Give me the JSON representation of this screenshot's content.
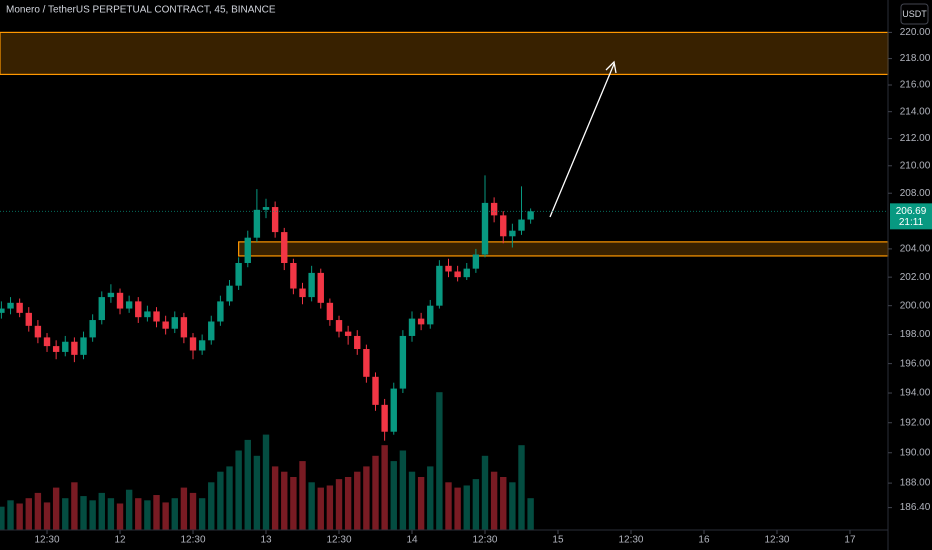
{
  "chart_data": {
    "type": "candlestick",
    "title": "Monero / TetherUS PERPETUAL CONTRACT, 45, BINANCE",
    "currency": "USDT",
    "countdown": "21:11",
    "log_scale": true,
    "up_color": "#089981",
    "down_color": "#f23645",
    "zone_color": "#ff9800",
    "t": [
      -19.5,
      -18,
      -16.5,
      -15,
      -13.5,
      -12,
      -10.5,
      -9,
      -7.5,
      -6,
      -4.5,
      -3,
      -1.5,
      0,
      1.5,
      3,
      4.5,
      6,
      7.5,
      9,
      10.5,
      12,
      13.5,
      15,
      16.5,
      18,
      19.5,
      21,
      22.5,
      24,
      25.5,
      27,
      28.5,
      30,
      31.5,
      33,
      34.5,
      36,
      37.5,
      39,
      40.5,
      42,
      43.5,
      45,
      46.5,
      48,
      49.5,
      51,
      52.5,
      54,
      55.5,
      57,
      58.5,
      60,
      61.5,
      63,
      64.5,
      66,
      67.5
    ],
    "open": [
      199.5,
      199.8,
      200.2,
      199.5,
      198.6,
      197.8,
      197.2,
      196.8,
      197.5,
      196.6,
      197.8,
      199.0,
      200.6,
      200.9,
      199.8,
      200.3,
      199.2,
      199.6,
      198.9,
      198.4,
      199.2,
      197.8,
      196.9,
      197.6,
      198.9,
      200.3,
      201.4,
      203.0,
      204.8,
      206.8,
      207.0,
      205.2,
      203.0,
      201.2,
      200.6,
      202.3,
      200.2,
      199.0,
      198.2,
      197.9,
      197.0,
      195.1,
      193.2,
      191.4,
      194.3,
      197.9,
      199.1,
      198.7,
      200.0,
      202.8,
      202.4,
      202.0,
      202.6,
      203.6,
      207.3,
      206.4,
      204.9,
      205.3,
      206.1
    ],
    "high": [
      200.3,
      200.6,
      200.5,
      199.9,
      199.0,
      198.1,
      197.6,
      197.9,
      197.8,
      198.2,
      199.4,
      201.0,
      201.5,
      201.2,
      200.7,
      200.6,
      200.0,
      199.9,
      199.3,
      199.6,
      199.5,
      198.1,
      198.0,
      199.3,
      200.7,
      201.8,
      203.4,
      205.3,
      208.3,
      207.6,
      207.4,
      205.5,
      203.3,
      201.6,
      202.8,
      202.6,
      200.5,
      199.3,
      198.6,
      198.3,
      197.3,
      195.4,
      193.6,
      194.7,
      198.3,
      199.6,
      199.5,
      200.4,
      203.2,
      203.3,
      202.8,
      203.0,
      204.0,
      209.3,
      207.7,
      206.7,
      205.8,
      208.5,
      206.9
    ],
    "low": [
      199.1,
      199.4,
      199.2,
      198.2,
      197.4,
      196.8,
      196.3,
      196.5,
      196.1,
      196.3,
      197.5,
      198.7,
      200.2,
      199.4,
      199.5,
      198.8,
      198.9,
      198.5,
      198.0,
      198.1,
      197.4,
      196.3,
      196.6,
      197.3,
      198.6,
      200.0,
      201.1,
      202.7,
      204.5,
      206.2,
      204.8,
      202.5,
      200.8,
      200.1,
      200.3,
      199.8,
      198.6,
      197.8,
      197.3,
      196.6,
      194.7,
      192.8,
      190.8,
      191.2,
      194.0,
      197.5,
      198.3,
      198.4,
      199.8,
      202.0,
      201.7,
      201.8,
      202.3,
      203.4,
      205.9,
      204.4,
      204.1,
      205.0,
      205.8
    ],
    "close": [
      199.8,
      200.2,
      199.5,
      198.6,
      197.8,
      197.2,
      196.8,
      197.5,
      196.6,
      197.8,
      199.0,
      200.6,
      200.9,
      199.8,
      200.3,
      199.2,
      199.6,
      198.9,
      198.4,
      199.2,
      197.8,
      196.9,
      197.6,
      198.9,
      200.3,
      201.4,
      203.0,
      204.8,
      206.8,
      207.0,
      205.2,
      203.0,
      201.2,
      200.6,
      202.3,
      200.2,
      199.0,
      198.2,
      197.9,
      197.0,
      195.1,
      193.2,
      191.4,
      194.3,
      197.9,
      199.1,
      198.7,
      200.0,
      202.8,
      202.4,
      202.0,
      202.6,
      203.6,
      207.3,
      206.4,
      204.9,
      205.3,
      206.1,
      206.69
    ],
    "volume": [
      22,
      28,
      25,
      30,
      35,
      26,
      40,
      30,
      45,
      32,
      28,
      35,
      30,
      25,
      38,
      30,
      28,
      33,
      26,
      30,
      40,
      35,
      30,
      45,
      55,
      60,
      75,
      85,
      70,
      90,
      60,
      55,
      50,
      65,
      45,
      40,
      42,
      48,
      50,
      55,
      60,
      70,
      80,
      65,
      75,
      55,
      50,
      60,
      130,
      45,
      40,
      42,
      48,
      70,
      55,
      50,
      45,
      80,
      30
    ],
    "vlim": [
      0,
      500
    ],
    "zones": [
      {
        "from": 216.8,
        "to": 220,
        "start": -999
      },
      {
        "from": 203.5,
        "to": 204.5,
        "start": 19.5
      }
    ],
    "xlim": [
      -19.73,
      126.25
    ],
    "xticks": [
      {
        "value": -12,
        "label": "12:30"
      },
      {
        "value": 0,
        "label": "12"
      },
      {
        "value": 12,
        "label": "12:30"
      },
      {
        "value": 24,
        "label": "13"
      },
      {
        "value": 36,
        "label": "12:30"
      },
      {
        "value": 48,
        "label": "14"
      },
      {
        "value": 60,
        "label": "12:30"
      },
      {
        "value": 72,
        "label": "15"
      },
      {
        "value": 84,
        "label": "12:30"
      },
      {
        "value": 96,
        "label": "16"
      },
      {
        "value": 108,
        "label": "12:30"
      },
      {
        "value": 120,
        "label": "17"
      }
    ],
    "ylim": [
      184.95,
      222.5
    ],
    "yticks": [
      {
        "value": 220,
        "label": "220.00"
      },
      {
        "value": 218,
        "label": "218.00"
      },
      {
        "value": 216,
        "label": "216.00"
      },
      {
        "value": 214,
        "label": "214.00"
      },
      {
        "value": 212,
        "label": "212.00"
      },
      {
        "value": 210,
        "label": "210.00"
      },
      {
        "value": 208,
        "label": "208.00"
      },
      {
        "value": 204,
        "label": "204.00"
      },
      {
        "value": 202,
        "label": "202.00"
      },
      {
        "value": 200,
        "label": "200.00"
      },
      {
        "value": 198,
        "label": "198.00"
      },
      {
        "value": 196,
        "label": "196.00"
      },
      {
        "value": 194,
        "label": "194.00"
      },
      {
        "value": 192,
        "label": "192.00"
      },
      {
        "value": 190,
        "label": "190.00"
      },
      {
        "value": 188,
        "label": "188.00"
      },
      {
        "value": 186.4,
        "label": "186.40"
      }
    ]
  }
}
